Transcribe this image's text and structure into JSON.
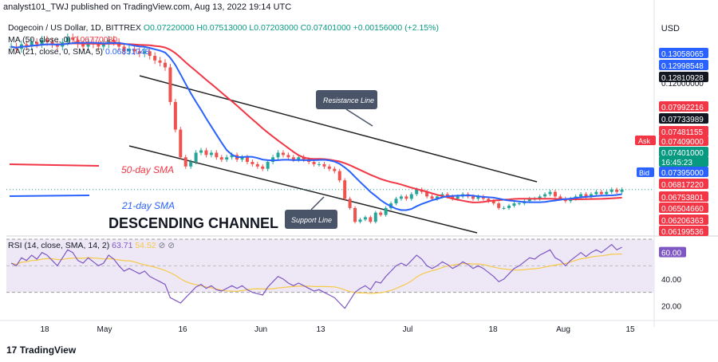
{
  "header": {
    "publisher": "analyst101_TWJ published on TradingView.com, Aug 13, 2022 19:14 UTC"
  },
  "legend": {
    "symbol": "Dogecoin / US Dollar, 1D, BITTREX",
    "ohlc": "O0.07220000 H0.07513000 L0.07203000 C0.07401000 +0.00156000 (+2.15%)",
    "ma50": "MA (50, close, 0)",
    "ma50_value": "0.06770080",
    "ma21": "MA (21, close, 0, SMA, 5)",
    "ma21_value": "0.06851048",
    "rsi": "RSI (14, close, SMA, 14, 2)",
    "rsi_value": "63.71",
    "rsi_ma_value": "54.52"
  },
  "currency": "USD",
  "price_axis": {
    "labels": [
      {
        "text": "0.13058065",
        "color": "#2962ff"
      },
      {
        "text": "0.12998548",
        "color": "#2962ff"
      },
      {
        "text": "0.12810928",
        "color": "#131722"
      },
      {
        "text": "0.12000000",
        "color": "plain"
      },
      {
        "text": "0.07992216",
        "color": "#f23645"
      },
      {
        "text": "0.07733989",
        "color": "#131722"
      },
      {
        "text": "0.07481155",
        "color": "#f23645"
      },
      {
        "text": "0.07409000",
        "color": "#f23645"
      },
      {
        "text": "0.07401000",
        "color": "#089981"
      },
      {
        "text": "16:45:23",
        "color": "#089981"
      },
      {
        "text": "0.07395000",
        "color": "#2962ff"
      },
      {
        "text": "0.06817220",
        "color": "#f23645"
      },
      {
        "text": "0.06753801",
        "color": "#f23645"
      },
      {
        "text": "0.06504660",
        "color": "#f23645"
      },
      {
        "text": "0.06206363",
        "color": "#f23645"
      },
      {
        "text": "0.06199536",
        "color": "#f23645"
      }
    ],
    "ask_label": "Ask",
    "bid_label": "Bid"
  },
  "rsi_axis": [
    "60.00",
    "40.00",
    "20.00"
  ],
  "time_axis": [
    "18",
    "May",
    "16",
    "Jun",
    "13",
    "Jul",
    "18",
    "Aug",
    "15"
  ],
  "annotations": {
    "resistance": "Resistance Line",
    "support": "Support Line",
    "sma50": "50-day SMA",
    "sma21": "21-day SMA",
    "channel": "DESCENDING CHANNEL"
  },
  "footer": "TradingView",
  "colors": {
    "up": "#26a69a",
    "down": "#ef5350",
    "ma50": "#f23645",
    "ma21": "#2962ff",
    "rsi": "#7e57c2",
    "rsi_ma": "#f7c948",
    "rsi_band": "#ede7f6"
  },
  "chart_data": {
    "type": "candlestick",
    "price_closes": [
      0.136,
      0.135,
      0.137,
      0.136,
      0.138,
      0.137,
      0.139,
      0.138,
      0.137,
      0.136,
      0.138,
      0.14,
      0.139,
      0.137,
      0.136,
      0.138,
      0.137,
      0.136,
      0.137,
      0.139,
      0.138,
      0.136,
      0.134,
      0.135,
      0.134,
      0.133,
      0.134,
      0.132,
      0.13,
      0.129,
      0.127,
      0.112,
      0.1,
      0.088,
      0.084,
      0.086,
      0.09,
      0.091,
      0.089,
      0.09,
      0.088,
      0.087,
      0.088,
      0.089,
      0.087,
      0.088,
      0.086,
      0.085,
      0.084,
      0.083,
      0.086,
      0.088,
      0.09,
      0.089,
      0.088,
      0.087,
      0.088,
      0.087,
      0.086,
      0.085,
      0.085,
      0.084,
      0.083,
      0.082,
      0.078,
      0.07,
      0.066,
      0.06,
      0.061,
      0.062,
      0.06,
      0.064,
      0.063,
      0.066,
      0.068,
      0.07,
      0.071,
      0.07,
      0.072,
      0.074,
      0.073,
      0.071,
      0.07,
      0.071,
      0.072,
      0.071,
      0.07,
      0.071,
      0.072,
      0.071,
      0.07,
      0.071,
      0.07,
      0.069,
      0.068,
      0.066,
      0.066,
      0.067,
      0.068,
      0.068,
      0.069,
      0.07,
      0.07,
      0.071,
      0.072,
      0.073,
      0.071,
      0.07,
      0.069,
      0.07,
      0.071,
      0.072,
      0.071,
      0.072,
      0.073,
      0.072,
      0.073,
      0.074,
      0.073,
      0.074
    ],
    "rsi": [
      52,
      50,
      56,
      54,
      58,
      55,
      60,
      58,
      54,
      50,
      56,
      62,
      60,
      54,
      52,
      56,
      53,
      50,
      52,
      58,
      55,
      50,
      46,
      48,
      46,
      44,
      46,
      42,
      40,
      38,
      36,
      26,
      24,
      22,
      26,
      30,
      34,
      36,
      33,
      35,
      32,
      31,
      33,
      35,
      33,
      35,
      32,
      30,
      29,
      28,
      34,
      38,
      42,
      40,
      37,
      35,
      37,
      35,
      33,
      31,
      32,
      30,
      28,
      26,
      22,
      18,
      24,
      30,
      33,
      35,
      32,
      38,
      37,
      42,
      46,
      50,
      52,
      50,
      54,
      58,
      55,
      50,
      48,
      50,
      53,
      51,
      48,
      50,
      53,
      51,
      48,
      50,
      48,
      45,
      42,
      38,
      40,
      44,
      48,
      50,
      53,
      56,
      55,
      58,
      60,
      62,
      56,
      54,
      50,
      54,
      57,
      60,
      57,
      60,
      62,
      60,
      63,
      66,
      62,
      64
    ],
    "rsi_ylim": [
      10,
      70
    ],
    "x_tick_labels": [
      "18",
      "May",
      "16",
      "Jun",
      "13",
      "Jul",
      "18",
      "Aug",
      "15"
    ]
  }
}
